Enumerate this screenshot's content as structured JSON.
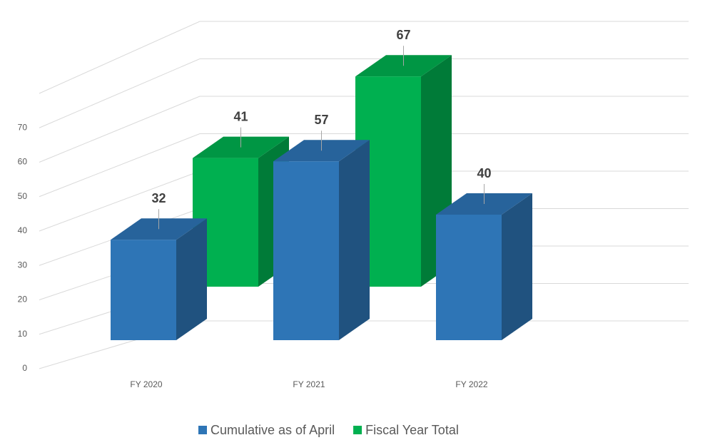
{
  "chart_data": {
    "type": "bar3d",
    "categories": [
      "FY 2020",
      "FY 2021",
      "FY 2022"
    ],
    "series": [
      {
        "name": "Cumulative as of April",
        "color": "#2e75b6",
        "values": [
          32,
          57,
          40
        ]
      },
      {
        "name": "Fiscal Year Total",
        "color": "#00b050",
        "values": [
          41,
          67,
          null
        ]
      }
    ],
    "ylim": [
      0,
      80
    ],
    "yticks": [
      0,
      10,
      20,
      30,
      40,
      50,
      60,
      70
    ],
    "grid": true,
    "legend": "bottom"
  }
}
